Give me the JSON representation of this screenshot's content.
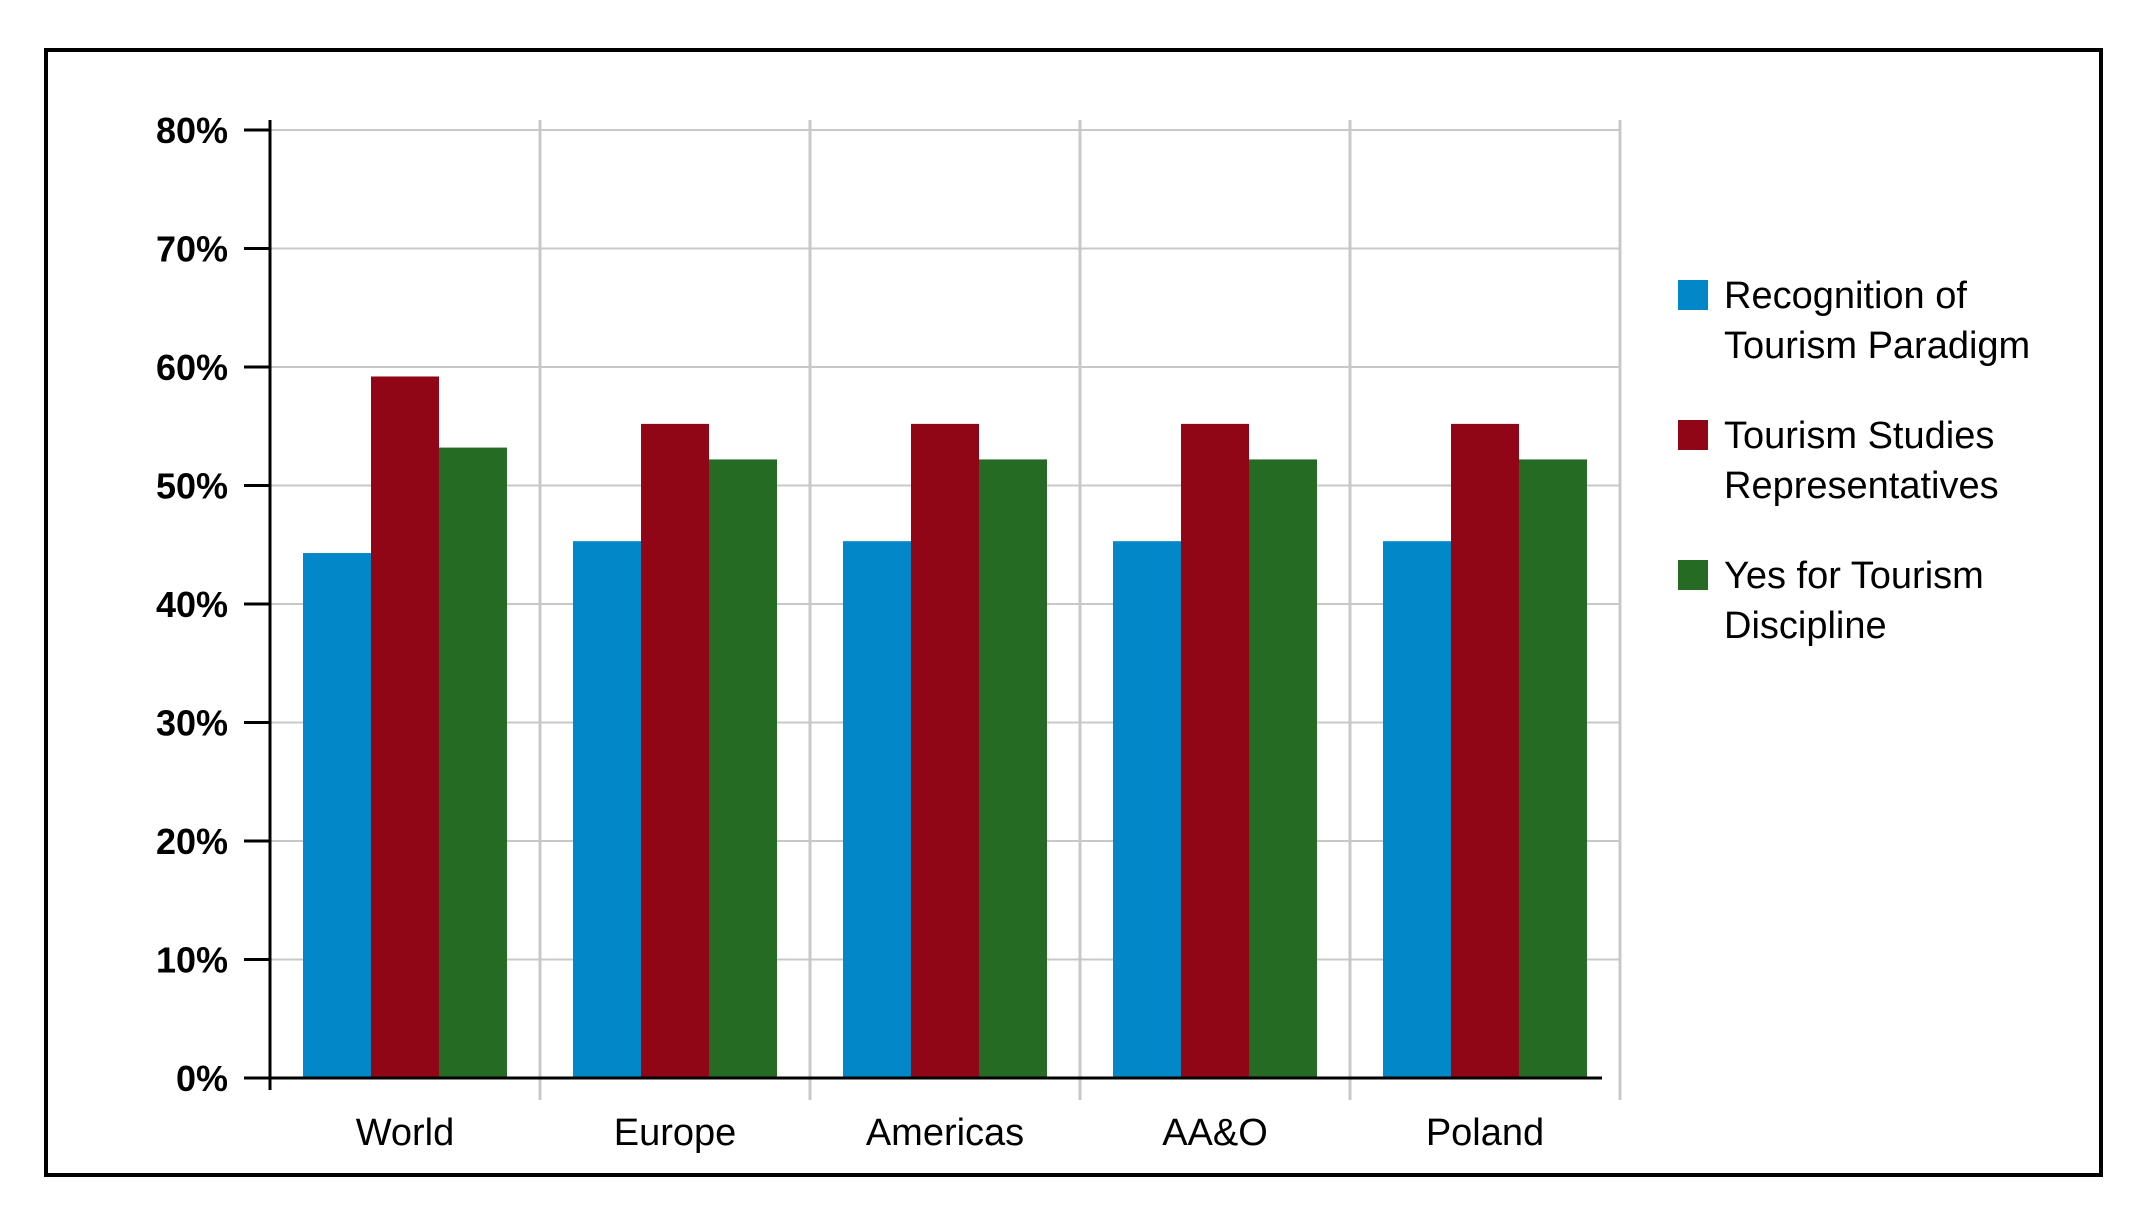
{
  "chart_data": {
    "type": "bar",
    "categories": [
      "World",
      "Europe",
      "Americas",
      "AA&O",
      "Poland"
    ],
    "series": [
      {
        "name": "Recognition of Tourism Paradigm",
        "legend_lines": [
          "Recognition of",
          "Tourism Paradigm"
        ],
        "color": "#0287c8",
        "values": [
          44.3,
          45.3,
          45.3,
          45.3,
          45.3
        ]
      },
      {
        "name": "Tourism Studies Representatives",
        "legend_lines": [
          "Tourism Studies",
          "Representatives"
        ],
        "color": "#900616",
        "values": [
          59.2,
          55.2,
          55.2,
          55.2,
          55.2
        ]
      },
      {
        "name": "Yes for Tourism Discipline",
        "legend_lines": [
          "Yes for Tourism",
          "Discipline"
        ],
        "color": "#256b24",
        "values": [
          53.2,
          52.2,
          52.2,
          52.2,
          52.2
        ]
      }
    ],
    "y_ticks": [
      "0%",
      "10%",
      "20%",
      "30%",
      "40%",
      "50%",
      "60%",
      "70%",
      "80%"
    ],
    "ylim": [
      0,
      80
    ],
    "title": "",
    "xlabel": "",
    "ylabel": "",
    "grid": true,
    "legend_position": "right"
  }
}
